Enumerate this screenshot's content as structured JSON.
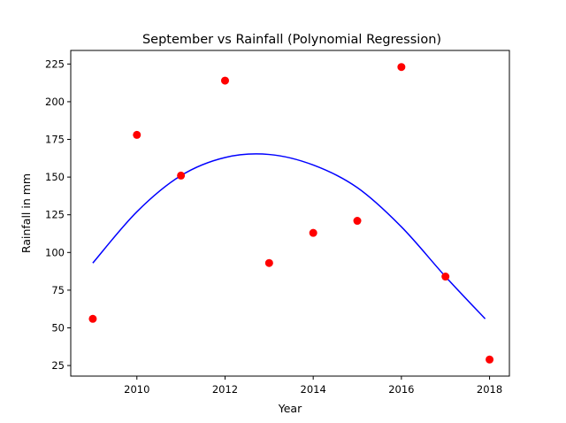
{
  "chart_data": {
    "type": "scatter",
    "title": "September vs Rainfall (Polynomial Regression)",
    "xlabel": "Year",
    "ylabel": "Rainfall in mm",
    "xlim": [
      2008.5,
      2018.45
    ],
    "ylim": [
      18,
      234
    ],
    "xticks": [
      2010,
      2012,
      2014,
      2016,
      2018
    ],
    "xtick_labels": [
      "2010",
      "2012",
      "2014",
      "2016",
      "2018"
    ],
    "yticks": [
      25,
      50,
      75,
      100,
      125,
      150,
      175,
      200,
      225
    ],
    "ytick_labels": [
      "25",
      "50",
      "75",
      "100",
      "125",
      "150",
      "175",
      "200",
      "225"
    ],
    "grid": false,
    "points": {
      "color": "#ff0000",
      "x": [
        2009,
        2010,
        2011,
        2012,
        2013,
        2014,
        2015,
        2016,
        2017,
        2018
      ],
      "y": [
        56,
        178,
        151,
        214,
        93,
        113,
        121,
        223,
        84,
        29
      ]
    },
    "curve": {
      "color": "#0000ff",
      "x": [
        2009,
        2010,
        2011,
        2012,
        2013,
        2014,
        2015,
        2016,
        2017,
        2017.9
      ],
      "y": [
        93,
        127,
        151,
        163,
        165,
        158,
        143,
        117,
        84,
        56
      ]
    }
  }
}
